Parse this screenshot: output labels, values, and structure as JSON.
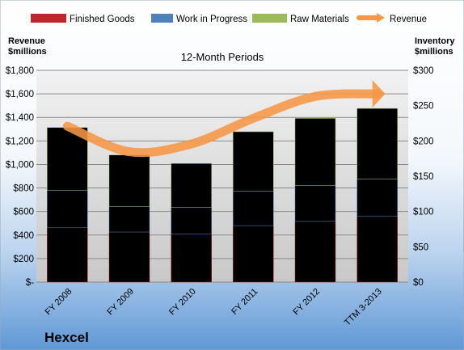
{
  "chart_data": {
    "type": "bar",
    "stacked": true,
    "subtitle": "12-Month Periods",
    "company": "Hexcel",
    "left_axis_label": [
      "Revenue",
      "$millions"
    ],
    "right_axis_label": [
      "Inventory",
      "$millions"
    ],
    "categories": [
      "FY 2008",
      "FY 2009",
      "FY 2010",
      "FY 2011",
      "FY 2012",
      "TTM 3-2013"
    ],
    "series": [
      {
        "name": "Finished Goods",
        "type": "bar",
        "axis": "right",
        "color": "#c0272d",
        "values": [
          77,
          71,
          68,
          80,
          86,
          93
        ]
      },
      {
        "name": "Work in Progress",
        "type": "bar",
        "axis": "right",
        "color": "#4f81bd",
        "values": [
          53,
          36,
          38,
          49,
          51,
          53
        ]
      },
      {
        "name": "Raw Materials",
        "type": "bar",
        "axis": "right",
        "color": "#9bbb59",
        "values": [
          89,
          73,
          62,
          84,
          95,
          100
        ]
      },
      {
        "name": "Revenue",
        "type": "line",
        "axis": "left",
        "color": "#f79646",
        "values": [
          1325,
          1108,
          1174,
          1392,
          1578,
          1600
        ]
      }
    ],
    "left_axis": {
      "min": 0,
      "max": 1800,
      "step": 200,
      "ticks": [
        "$-",
        "$200",
        "$400",
        "$600",
        "$800",
        "$1,000",
        "$1,200",
        "$1,400",
        "$1,600",
        "$1,800"
      ]
    },
    "right_axis": {
      "min": 0,
      "max": 300,
      "step": 50,
      "ticks": [
        "$0",
        "$50",
        "$100",
        "$150",
        "$200",
        "$250",
        "$300"
      ]
    },
    "grid": true,
    "legend_position": "top"
  }
}
